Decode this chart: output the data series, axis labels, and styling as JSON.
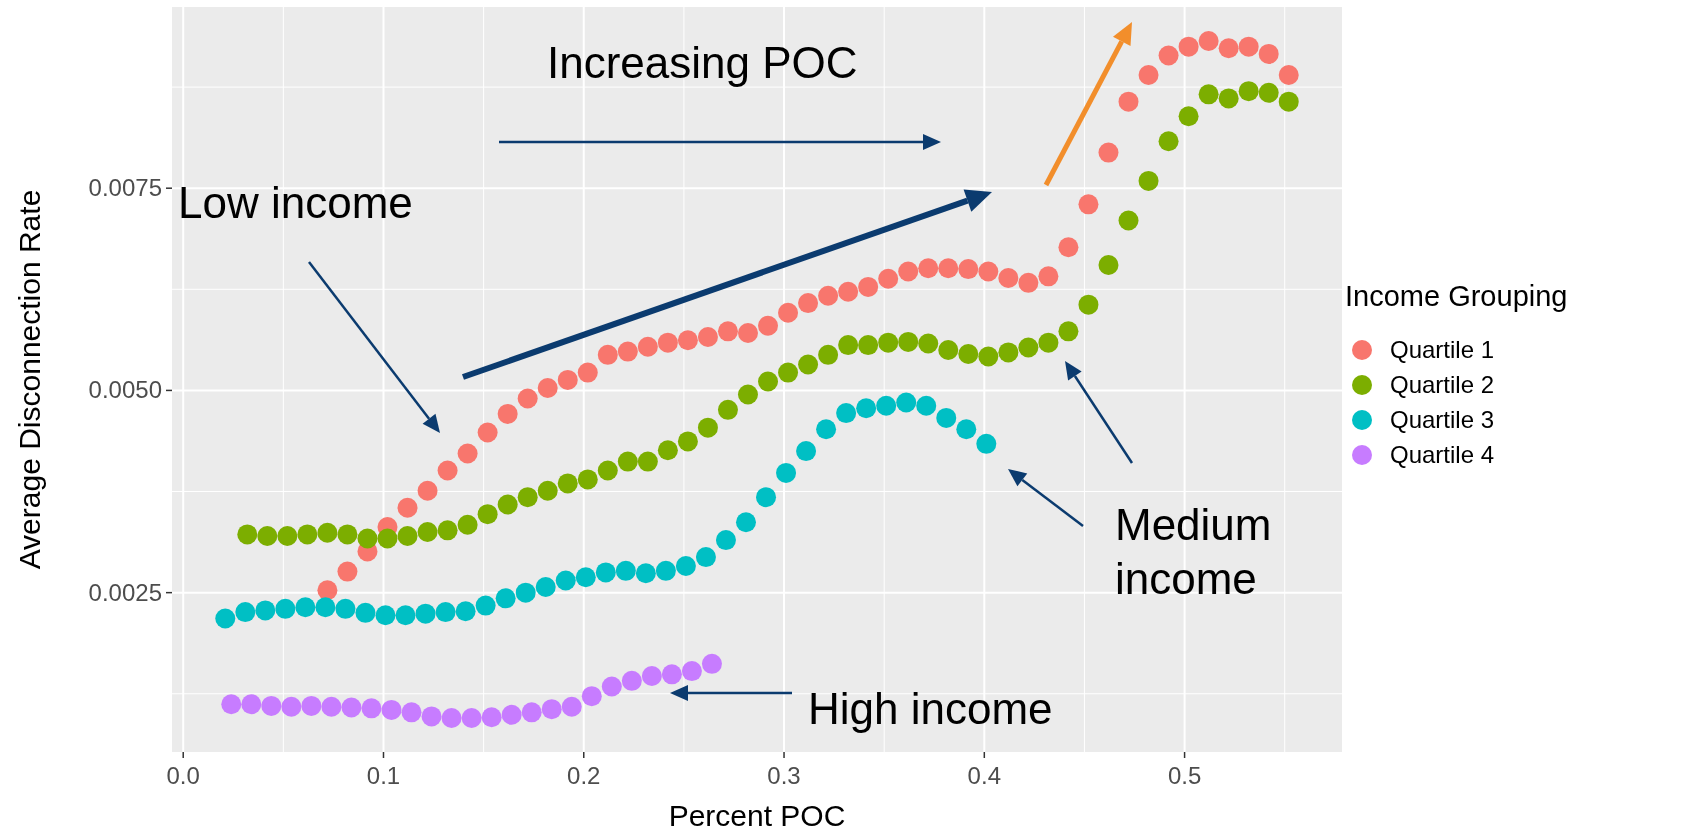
{
  "chart_data": {
    "type": "scatter",
    "xlabel": "Percent POC",
    "ylabel": "Average Disconnection Rate",
    "legend_title": "Income Grouping",
    "legend": "right",
    "grid": true,
    "marker": "circle",
    "xlim": [
      -0.0056,
      0.5786
    ],
    "ylim": [
      0.00053,
      0.00974
    ],
    "xticks": [
      {
        "value": 0,
        "label": "0.0"
      },
      0.1,
      0.2,
      0.3,
      0.4,
      0.5
    ],
    "yticks": [
      0.0025,
      {
        "value": 0.005,
        "label": "0.0050"
      },
      0.0075
    ],
    "annotations": [
      "Increasing POC",
      "Low income",
      "Medium income",
      "High income"
    ],
    "series": [
      {
        "name": "Quartile 1",
        "color": "#f8766d",
        "x": [
          0.072,
          0.082,
          0.092,
          0.102,
          0.112,
          0.122,
          0.132,
          0.142,
          0.152,
          0.162,
          0.172,
          0.182,
          0.192,
          0.202,
          0.212,
          0.222,
          0.232,
          0.242,
          0.252,
          0.262,
          0.272,
          0.282,
          0.292,
          0.302,
          0.312,
          0.322,
          0.332,
          0.342,
          0.352,
          0.362,
          0.372,
          0.382,
          0.392,
          0.402,
          0.412,
          0.422,
          0.432,
          0.442,
          0.452,
          0.462,
          0.472,
          0.482,
          0.492,
          0.502,
          0.512,
          0.522,
          0.532,
          0.542,
          0.552
        ],
        "values": [
          0.00253,
          0.00276,
          0.00301,
          0.00331,
          0.00355,
          0.00376,
          0.00401,
          0.00422,
          0.00448,
          0.00471,
          0.0049,
          0.00503,
          0.00513,
          0.00522,
          0.00544,
          0.00548,
          0.00554,
          0.00559,
          0.00562,
          0.00566,
          0.00573,
          0.00571,
          0.0058,
          0.00596,
          0.00608,
          0.00617,
          0.00622,
          0.00628,
          0.00638,
          0.00647,
          0.00651,
          0.00651,
          0.0065,
          0.00647,
          0.00639,
          0.00633,
          0.00641,
          0.00677,
          0.0073,
          0.00794,
          0.00857,
          0.0089,
          0.00914,
          0.00925,
          0.00932,
          0.00923,
          0.00925,
          0.00916,
          0.0089
        ]
      },
      {
        "name": "Quartile 2",
        "color": "#7cae00",
        "x": [
          0.032,
          0.042,
          0.052,
          0.062,
          0.072,
          0.082,
          0.092,
          0.102,
          0.112,
          0.122,
          0.132,
          0.142,
          0.152,
          0.162,
          0.172,
          0.182,
          0.192,
          0.202,
          0.212,
          0.222,
          0.232,
          0.242,
          0.252,
          0.262,
          0.272,
          0.282,
          0.292,
          0.302,
          0.312,
          0.322,
          0.332,
          0.342,
          0.352,
          0.362,
          0.372,
          0.382,
          0.392,
          0.402,
          0.412,
          0.422,
          0.432,
          0.442,
          0.452,
          0.462,
          0.472,
          0.482,
          0.492,
          0.502,
          0.512,
          0.522,
          0.532,
          0.542,
          0.552
        ],
        "values": [
          0.00322,
          0.0032,
          0.0032,
          0.00322,
          0.00324,
          0.00322,
          0.00317,
          0.00317,
          0.0032,
          0.00325,
          0.00327,
          0.00334,
          0.00347,
          0.00359,
          0.00368,
          0.00376,
          0.00385,
          0.0039,
          0.00401,
          0.00412,
          0.00412,
          0.00426,
          0.00437,
          0.00454,
          0.00476,
          0.00495,
          0.00511,
          0.00522,
          0.00532,
          0.00544,
          0.00556,
          0.00556,
          0.00559,
          0.0056,
          0.00558,
          0.0055,
          0.00545,
          0.00542,
          0.00547,
          0.00553,
          0.00559,
          0.00573,
          0.00606,
          0.00655,
          0.0071,
          0.00759,
          0.00808,
          0.00839,
          0.00866,
          0.00861,
          0.0087,
          0.00868,
          0.00857
        ]
      },
      {
        "name": "Quartile 3",
        "color": "#00bfc4",
        "x": [
          0.021,
          0.031,
          0.041,
          0.051,
          0.061,
          0.071,
          0.081,
          0.091,
          0.101,
          0.111,
          0.121,
          0.131,
          0.141,
          0.151,
          0.161,
          0.171,
          0.181,
          0.191,
          0.201,
          0.211,
          0.221,
          0.231,
          0.241,
          0.251,
          0.261,
          0.271,
          0.281,
          0.291,
          0.301,
          0.311,
          0.321,
          0.331,
          0.341,
          0.351,
          0.361,
          0.371,
          0.381,
          0.391,
          0.401
        ],
        "values": [
          0.00218,
          0.00226,
          0.00228,
          0.0023,
          0.00232,
          0.00232,
          0.0023,
          0.00225,
          0.00222,
          0.00222,
          0.00224,
          0.00226,
          0.00227,
          0.00234,
          0.00243,
          0.0025,
          0.00257,
          0.00265,
          0.00269,
          0.00275,
          0.00277,
          0.00274,
          0.00277,
          0.00283,
          0.00294,
          0.00315,
          0.00337,
          0.00368,
          0.00398,
          0.00425,
          0.00452,
          0.00472,
          0.00478,
          0.00481,
          0.00485,
          0.00481,
          0.00466,
          0.00452,
          0.00434
        ]
      },
      {
        "name": "Quartile 4",
        "color": "#c77cff",
        "x": [
          0.024,
          0.034,
          0.044,
          0.054,
          0.064,
          0.074,
          0.084,
          0.094,
          0.104,
          0.114,
          0.124,
          0.134,
          0.144,
          0.154,
          0.164,
          0.174,
          0.184,
          0.194,
          0.204,
          0.214,
          0.224,
          0.234,
          0.244,
          0.254,
          0.264
        ],
        "values": [
          0.00112,
          0.00112,
          0.0011,
          0.00109,
          0.0011,
          0.00109,
          0.00108,
          0.00107,
          0.00105,
          0.00102,
          0.00097,
          0.00095,
          0.00095,
          0.00096,
          0.00099,
          0.00102,
          0.00106,
          0.00109,
          0.00122,
          0.00134,
          0.00141,
          0.00147,
          0.00149,
          0.00153,
          0.00162
        ]
      }
    ]
  }
}
